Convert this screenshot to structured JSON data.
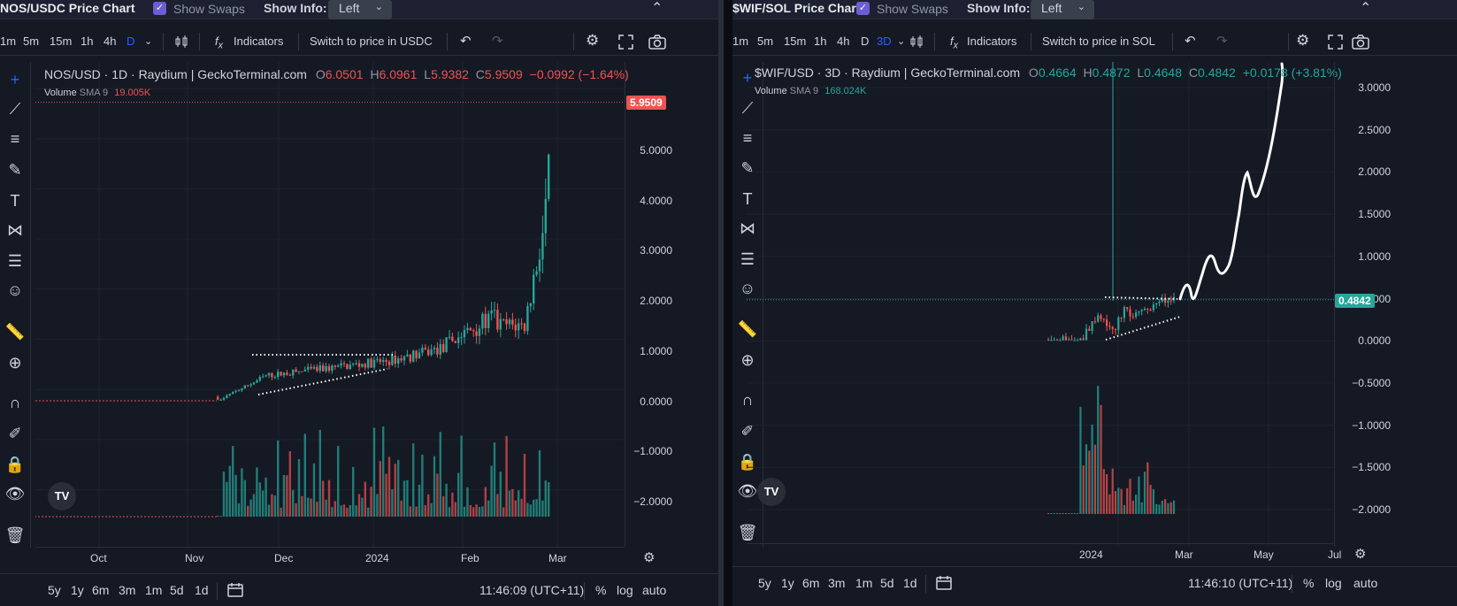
{
  "left": {
    "header": {
      "title": "NOS/USDC Price Chart",
      "show_swaps": "Show Swaps",
      "show_info_label": "Show Info:",
      "show_info_value": "Left"
    },
    "toolbar": {
      "intervals": [
        "1m",
        "5m",
        "15m",
        "1h",
        "4h",
        "D"
      ],
      "active_interval": "D",
      "indicators": "Indicators",
      "switch_price": "Switch to price in USDC"
    },
    "legend": {
      "title": "NOS/USD · 1D · Raydium | GeckoTerminal.com",
      "o_label": "O",
      "o": "6.0501",
      "h_label": "H",
      "h": "6.0961",
      "l_label": "L",
      "l": "5.9382",
      "c_label": "C",
      "c": "5.9509",
      "change": "−0.0992 (−1.64%)"
    },
    "volume": {
      "label": "Volume",
      "sma": "SMA 9",
      "value": "19.005K"
    },
    "price_tag": "5.9509",
    "yticks": [
      "5.0000",
      "4.0000",
      "3.0000",
      "2.0000",
      "1.0000",
      "0.0000",
      "−1.0000",
      "−2.0000"
    ],
    "xticks": [
      "Oct",
      "Nov",
      "Dec",
      "2024",
      "Feb",
      "Mar"
    ],
    "ranges": [
      "5y",
      "1y",
      "6m",
      "3m",
      "1m",
      "5d",
      "1d"
    ],
    "time": "11:46:09 (UTC+11)",
    "scale": {
      "percent": "%",
      "log": "log",
      "auto": "auto"
    }
  },
  "right": {
    "header": {
      "title": "$WIF/SOL Price Chart",
      "show_swaps": "Show Swaps",
      "show_info_label": "Show Info:",
      "show_info_value": "Left"
    },
    "toolbar": {
      "intervals": [
        "1m",
        "5m",
        "15m",
        "1h",
        "4h",
        "D",
        "3D"
      ],
      "active_interval": "3D",
      "indicators": "Indicators",
      "switch_price": "Switch to price in SOL"
    },
    "legend": {
      "title": "$WIF/USD · 3D · Raydium | GeckoTerminal.com",
      "o_label": "O",
      "o": "0.4664",
      "h_label": "H",
      "h": "0.4872",
      "l_label": "L",
      "l": "0.4648",
      "c_label": "C",
      "c": "0.4842",
      "change": "+0.0178 (+3.81%)"
    },
    "volume": {
      "label": "Volume",
      "sma": "SMA 9",
      "value": "168.024K"
    },
    "price_tag": "0.4842",
    "yticks": [
      "3.0000",
      "2.5000",
      "2.0000",
      "1.5000",
      "1.0000",
      "0.5000",
      "0.0000",
      "−0.5000",
      "−1.0000",
      "−1.5000",
      "−2.0000"
    ],
    "xticks": [
      "2024",
      "Mar",
      "May",
      "Jul"
    ],
    "ranges": [
      "5y",
      "1y",
      "6m",
      "3m",
      "1m",
      "5d",
      "1d"
    ],
    "time": "11:46:10 (UTC+11)",
    "scale": {
      "percent": "%",
      "log": "log",
      "auto": "auto"
    }
  },
  "colors": {
    "up": "#26a69a",
    "down": "#ef5350",
    "accent": "#2962ff",
    "background": "#151924"
  }
}
